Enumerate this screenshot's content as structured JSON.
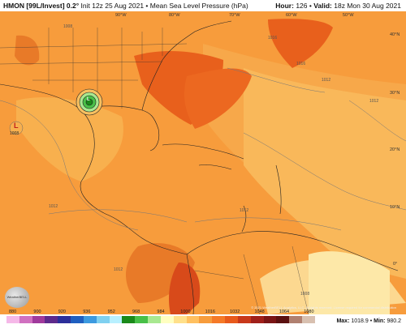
{
  "header": {
    "model": "HMON [99L/Invest] 0.2°",
    "init": "Init 12z 25 Aug 2021",
    "field": "Mean Sea Level Pressure (hPa)",
    "hour_label": "Hour:",
    "hour": "126",
    "valid_label": "Valid:",
    "valid": "18z Mon 30 Aug 2021"
  },
  "lon_labels": [
    "90°W",
    "80°W",
    "70°W",
    "60°W",
    "50°W"
  ],
  "lat_labels": [
    "40°N",
    "30°N",
    "20°N",
    "10°N",
    "0°"
  ],
  "isobar_labels": [
    "1008",
    "1016",
    "1012",
    "1012",
    "1012",
    "1012",
    "1008",
    "1012",
    "1016"
  ],
  "low": {
    "symbol": "L",
    "value": "1008"
  },
  "storm_center": "L",
  "colorbar": {
    "ticks": [
      "880",
      "900",
      "920",
      "936",
      "952",
      "968",
      "984",
      "1000",
      "1016",
      "1032",
      "1048",
      "1064",
      "1080"
    ],
    "colors": [
      "#f5b8e8",
      "#d070c0",
      "#a03a9c",
      "#5e2a8c",
      "#2c2f9a",
      "#1f5fc0",
      "#3c9ae0",
      "#7fd0f0",
      "#b8f0ff",
      "#1a8a1a",
      "#48c048",
      "#a8e890",
      "#ffffc0",
      "#ffe08a",
      "#ffc060",
      "#f79c3c",
      "#f57a28",
      "#e85a1c",
      "#c8381a",
      "#a0201a",
      "#7a1515",
      "#5a1010",
      "#b08070",
      "#d8c0b0"
    ]
  },
  "stats": {
    "max_label": "Max:",
    "max": "1018.9",
    "min_label": "Min:",
    "min": "980.2"
  },
  "credit": "© 2021 WeatherBELL Analytics, LLC. All rights reserved. License required for commercial distribution",
  "logo_text": "WeatherBELL"
}
